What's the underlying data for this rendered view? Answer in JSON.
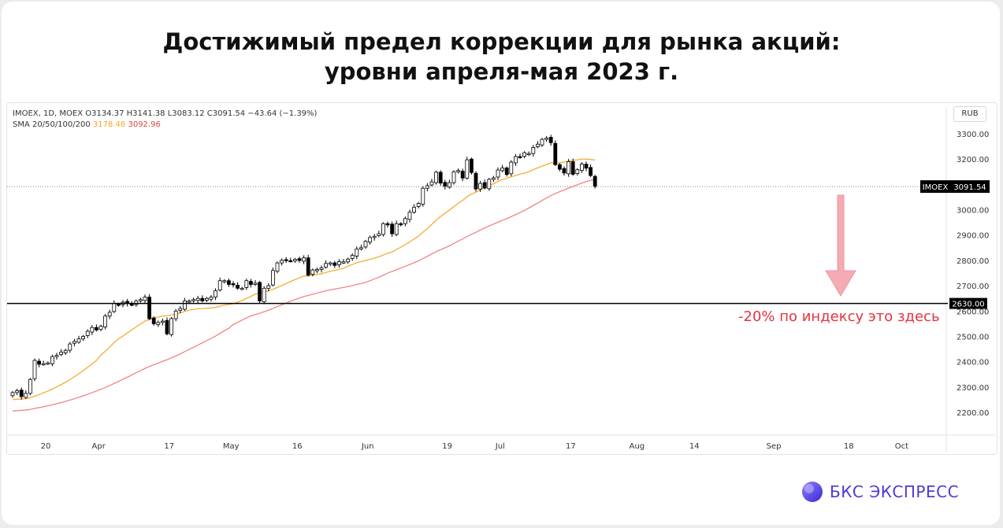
{
  "title": {
    "line1": "Достижимый предел коррекции для рынка акций:",
    "line2": "уровни апреля-мая 2023 г."
  },
  "legend": {
    "ohlc": "IMOEX, 1D, MOEX  O3134.37  H3141.38  L3083.12  C3091.54  −43.64 (−1.39%)",
    "sma_label": "SMA 20/50/100/200",
    "sma_value_1": "3178.46",
    "sma_value_2": "3092.96"
  },
  "currency_button": "RUB",
  "annotation": "-20% по индексу это здесь",
  "brand": "БКС ЭКСПРЕСС",
  "colors": {
    "up": "#ffffff",
    "down": "#000000",
    "sma_orange": "#f5a623",
    "sma_red": "#ef7b7b",
    "annotation": "#e8323f",
    "arrow": "#f4a3ab",
    "brand": "#4a3ad8"
  },
  "chart_data": {
    "type": "candlestick",
    "ticker": "IMOEX",
    "currency": "RUB",
    "y_ticks": [
      "2200.00",
      "2300.00",
      "2400.00",
      "2500.00",
      "2600.00",
      "2700.00",
      "2800.00",
      "2900.00",
      "3000.00",
      "3100.00",
      "3200.00",
      "3300.00"
    ],
    "ylim": [
      2120,
      3340
    ],
    "x_ticks": [
      {
        "label": "20",
        "day": 0
      },
      {
        "label": "Apr",
        "day": 12
      },
      {
        "label": "17",
        "day": 28
      },
      {
        "label": "May",
        "day": 42
      },
      {
        "label": "16",
        "day": 57
      },
      {
        "label": "Jun",
        "day": 73
      },
      {
        "label": "19",
        "day": 91
      },
      {
        "label": "Jul",
        "day": 103
      },
      {
        "label": "17",
        "day": 119
      },
      {
        "label": "Aug",
        "day": 134
      },
      {
        "label": "14",
        "day": 147
      },
      {
        "label": "Sep",
        "day": 165
      },
      {
        "label": "18",
        "day": 182
      },
      {
        "label": "Oct",
        "day": 194
      }
    ],
    "last_price_label": {
      "name": "IMOEX",
      "value": "3091.54"
    },
    "horizontal_line": {
      "value": 2630.0,
      "label": "2630.00"
    },
    "closes": [
      2278,
      2285,
      2262,
      2275,
      2330,
      2405,
      2390,
      2392,
      2395,
      2420,
      2425,
      2438,
      2445,
      2470,
      2480,
      2490,
      2500,
      2520,
      2535,
      2525,
      2540,
      2580,
      2595,
      2630,
      2625,
      2635,
      2630,
      2625,
      2640,
      2645,
      2655,
      2570,
      2550,
      2555,
      2560,
      2510,
      2570,
      2600,
      2610,
      2640,
      2640,
      2645,
      2650,
      2640,
      2650,
      2655,
      2680,
      2720,
      2720,
      2705,
      2705,
      2690,
      2690,
      2720,
      2705,
      2710,
      2640,
      2690,
      2700,
      2760,
      2790,
      2800,
      2802,
      2798,
      2804,
      2800,
      2810,
      2742,
      2762,
      2764,
      2770,
      2788,
      2790,
      2780,
      2795,
      2794,
      2805,
      2820,
      2845,
      2850,
      2875,
      2890,
      2895,
      2905,
      2945,
      2940,
      2905,
      2945,
      2942,
      2965,
      2990,
      3010,
      3025,
      3085,
      3095,
      3110,
      3148,
      3105,
      3092,
      3107,
      3150,
      3155,
      3125,
      3197,
      3147,
      3082,
      3104,
      3086,
      3120,
      3126,
      3157,
      3165,
      3139,
      3188,
      3210,
      3208,
      3225,
      3222,
      3246,
      3259,
      3278,
      3283,
      3265,
      3178,
      3160,
      3145,
      3190,
      3140,
      3158,
      3180,
      3164,
      3135,
      3091.54
    ],
    "sma_series": [
      {
        "name": "SMA 20",
        "value": 3178.46,
        "color": "#f5a623"
      },
      {
        "name": "SMA 50",
        "value": 3092.96,
        "color": "#ef7b7b"
      }
    ]
  }
}
